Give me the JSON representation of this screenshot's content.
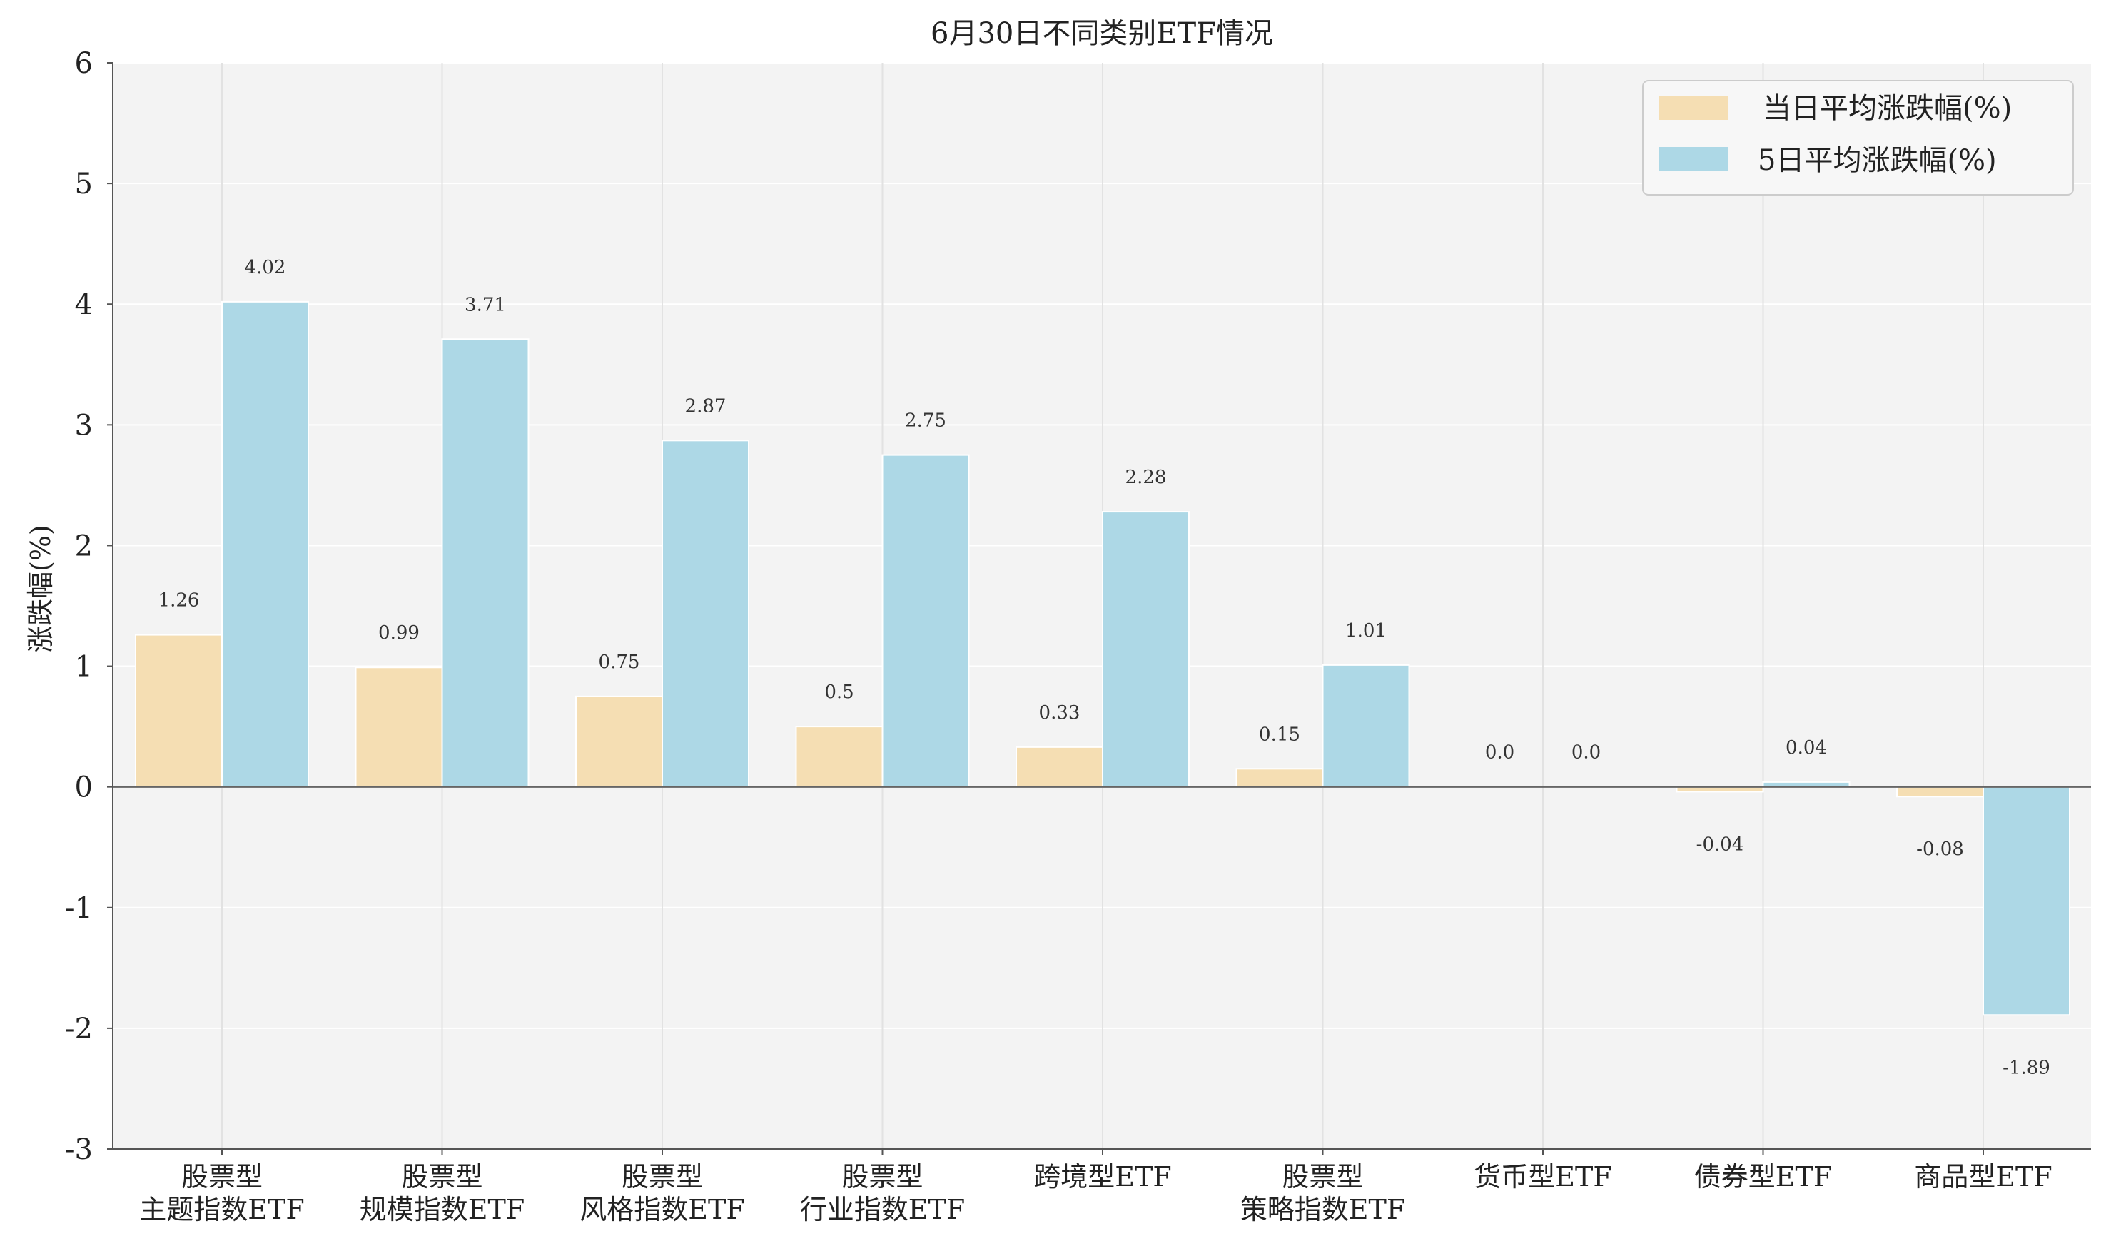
{
  "chart_data": {
    "type": "bar",
    "title": "6月30日不同类别ETF情况",
    "xlabel": "",
    "ylabel": "涨跌幅(%)",
    "ylim": [
      -3,
      6
    ],
    "yticks": [
      -3,
      -2,
      -1,
      0,
      1,
      2,
      3,
      4,
      5,
      6
    ],
    "grid": true,
    "legend_position": "top-right",
    "categories": [
      [
        "股票型",
        "主题指数ETF"
      ],
      [
        "股票型",
        "规模指数ETF"
      ],
      [
        "股票型",
        "风格指数ETF"
      ],
      [
        "股票型",
        "行业指数ETF"
      ],
      [
        "跨境型ETF"
      ],
      [
        "股票型",
        "策略指数ETF"
      ],
      [
        "货币型ETF"
      ],
      [
        "债券型ETF"
      ],
      [
        "商品型ETF"
      ]
    ],
    "series": [
      {
        "name": "当日平均涨跌幅(%)",
        "color": "#f5deb3",
        "values": [
          1.26,
          0.99,
          0.75,
          0.5,
          0.33,
          0.15,
          0.0,
          -0.04,
          -0.08
        ],
        "labels": [
          "1.26",
          "0.99",
          "0.75",
          "0.5",
          "0.33",
          "0.15",
          "0.0",
          "-0.04",
          "-0.08"
        ]
      },
      {
        "name": "5日平均涨跌幅(%)",
        "color": "#add8e6",
        "values": [
          4.02,
          3.71,
          2.87,
          2.75,
          2.28,
          1.01,
          0.0,
          0.04,
          -1.89
        ],
        "labels": [
          "4.02",
          "3.71",
          "2.87",
          "2.75",
          "2.28",
          "1.01",
          "0.0",
          "0.04",
          "-1.89"
        ]
      }
    ]
  }
}
